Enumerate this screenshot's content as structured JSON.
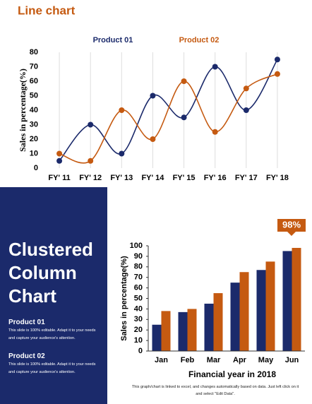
{
  "chart_data": [
    {
      "type": "line",
      "title": "Line chart",
      "ylabel": "Sales in percentage(%)",
      "categories": [
        "FY' 11",
        "FY' 12",
        "FY' 13",
        "FY' 14",
        "FY' 15",
        "FY' 16",
        "FY' 17",
        "FY' 18"
      ],
      "series": [
        {
          "name": "Product 01",
          "color": "#1b2a6b",
          "values": [
            5,
            30,
            10,
            50,
            35,
            70,
            40,
            75
          ]
        },
        {
          "name": "Product 02",
          "color": "#c55a11",
          "values": [
            10,
            5,
            40,
            20,
            60,
            25,
            55,
            65
          ]
        }
      ],
      "ylim": [
        0,
        80
      ],
      "yticks": [
        0,
        10,
        20,
        30,
        40,
        50,
        60,
        70,
        80
      ],
      "grid": true,
      "smooth": true
    },
    {
      "type": "bar",
      "title": "Clustered Column Chart",
      "ylabel": "Sales in percentage(%)",
      "xlabel": "Financial year in 2018",
      "categories": [
        "Jan",
        "Feb",
        "Mar",
        "Apr",
        "May",
        "Jun"
      ],
      "series": [
        {
          "name": "Product 01",
          "color": "#1b2a6b",
          "values": [
            25,
            37,
            45,
            65,
            77,
            95
          ]
        },
        {
          "name": "Product 02",
          "color": "#c55a11",
          "values": [
            38,
            40,
            55,
            75,
            85,
            98
          ]
        }
      ],
      "ylim": [
        0,
        100
      ],
      "yticks": [
        0,
        10,
        20,
        30,
        40,
        50,
        60,
        70,
        80,
        90,
        100
      ],
      "grid": false,
      "callout": "98%",
      "descriptions": [
        "This slide is 100% editable. Adapt it to your needs and capture your audience's attention.",
        "This slide is 100% editable. Adapt it to your needs and capture your audience's attention."
      ],
      "note": "This graph/chart is linked to excel, and changes automatically based on data. Just left click on it and select \"Edit Data\"."
    }
  ]
}
